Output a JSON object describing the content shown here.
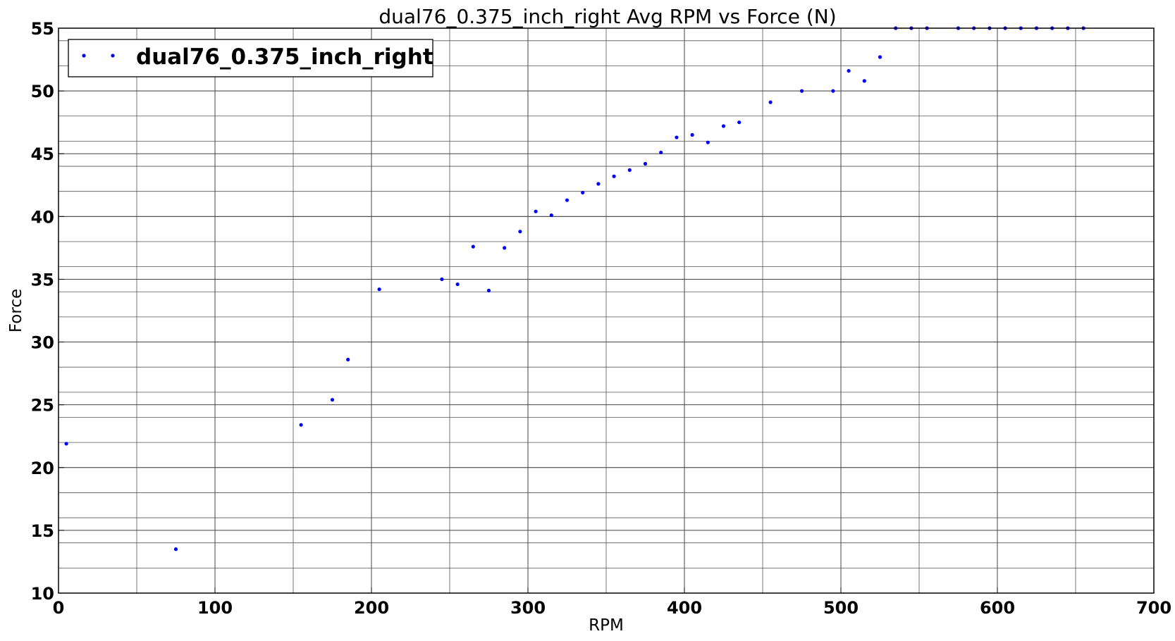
{
  "chart_data": {
    "type": "scatter",
    "title": "dual76_0.375_inch_right Avg RPM vs Force (N)",
    "xlabel": "RPM",
    "ylabel": "Force",
    "xlim": [
      0,
      700
    ],
    "ylim": [
      10,
      55
    ],
    "x_ticks": [
      0,
      100,
      200,
      300,
      400,
      500,
      600,
      700
    ],
    "y_ticks": [
      10,
      15,
      20,
      25,
      30,
      35,
      40,
      45,
      50,
      55
    ],
    "x_grid_minor_step": 50,
    "y_grid_minor_step": 2,
    "grid": true,
    "legend": {
      "position": "top-left"
    },
    "series": [
      {
        "name": "dual76_0.375_inch_right",
        "color": "#0000ff",
        "marker": "dot",
        "points": [
          [
            5,
            21.9
          ],
          [
            75,
            13.5
          ],
          [
            155,
            23.4
          ],
          [
            175,
            25.4
          ],
          [
            185,
            28.6
          ],
          [
            205,
            34.2
          ],
          [
            245,
            35.0
          ],
          [
            255,
            34.6
          ],
          [
            265,
            37.6
          ],
          [
            275,
            34.1
          ],
          [
            285,
            37.5
          ],
          [
            295,
            38.8
          ],
          [
            305,
            40.4
          ],
          [
            315,
            40.1
          ],
          [
            325,
            41.3
          ],
          [
            335,
            41.9
          ],
          [
            345,
            42.6
          ],
          [
            355,
            43.2
          ],
          [
            365,
            43.7
          ],
          [
            375,
            44.2
          ],
          [
            385,
            45.1
          ],
          [
            395,
            46.3
          ],
          [
            405,
            46.5
          ],
          [
            415,
            45.9
          ],
          [
            425,
            47.2
          ],
          [
            435,
            47.5
          ],
          [
            455,
            49.1
          ],
          [
            475,
            50.0
          ],
          [
            495,
            50.0
          ],
          [
            505,
            51.6
          ],
          [
            515,
            50.8
          ],
          [
            525,
            52.7
          ],
          [
            535,
            55.0
          ],
          [
            545,
            55.0
          ],
          [
            555,
            55.0
          ],
          [
            575,
            55.0
          ],
          [
            585,
            55.0
          ],
          [
            595,
            55.0
          ],
          [
            605,
            55.0
          ],
          [
            615,
            55.0
          ],
          [
            625,
            55.0
          ],
          [
            635,
            55.0
          ],
          [
            645,
            55.0
          ],
          [
            655,
            55.0
          ]
        ]
      }
    ]
  }
}
